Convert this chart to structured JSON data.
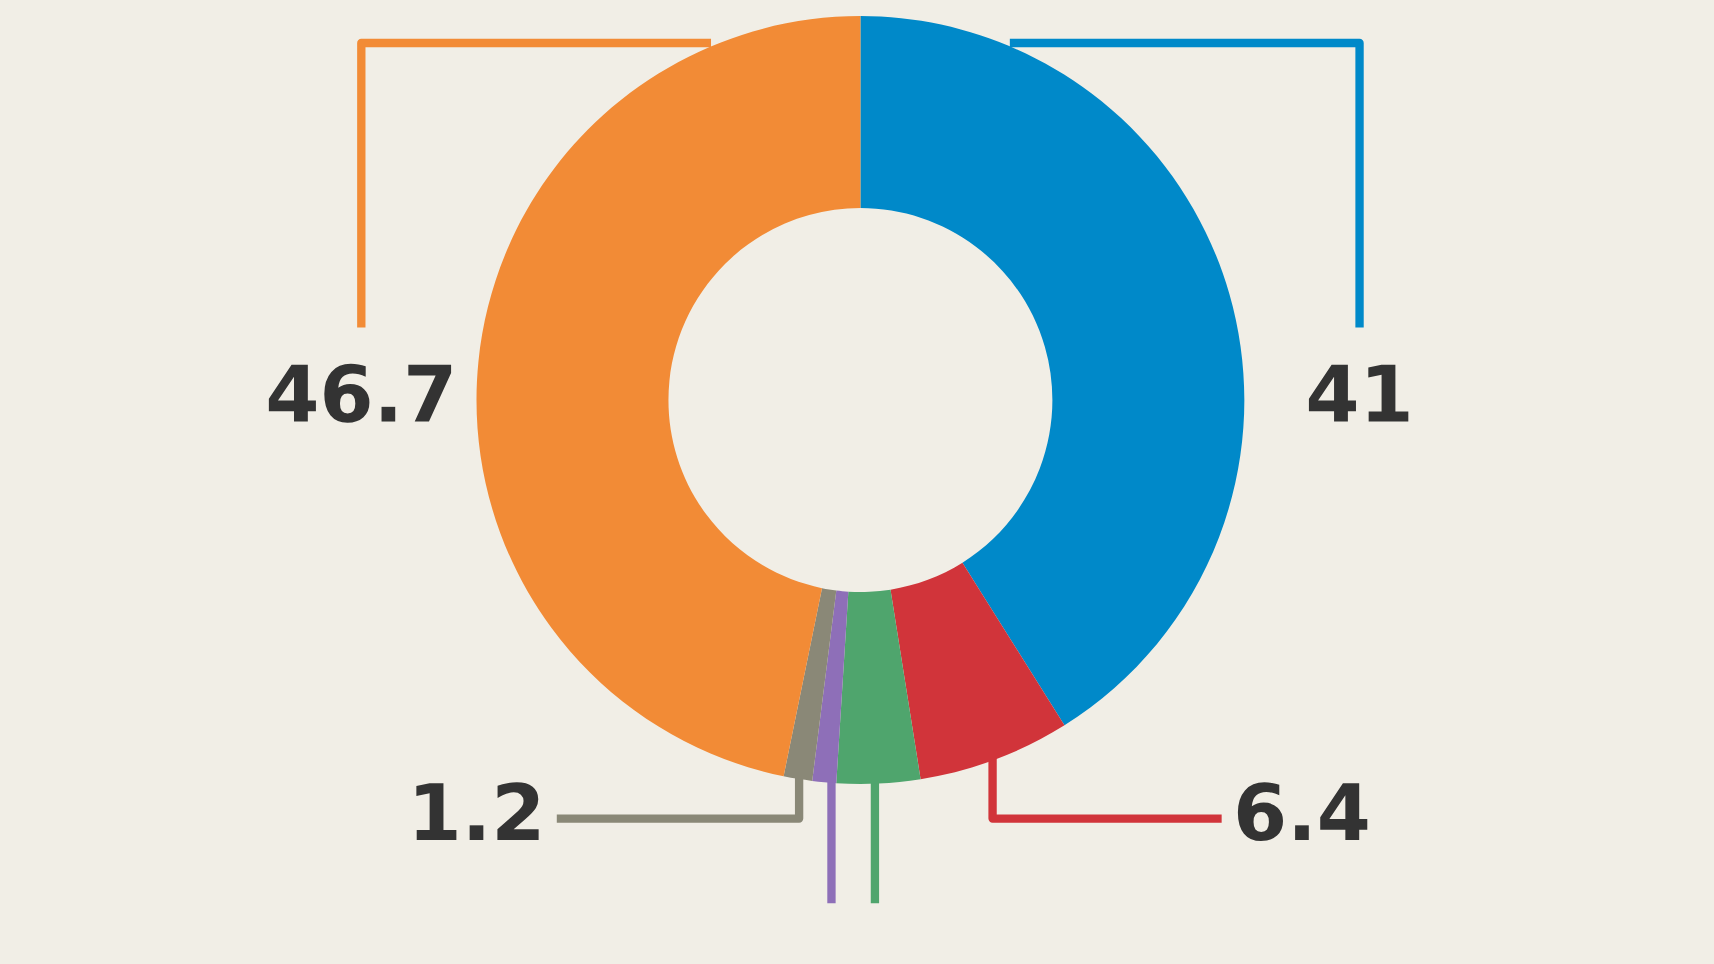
{
  "chart_data": {
    "type": "donut",
    "categories": [
      null,
      null,
      null,
      null,
      null,
      null
    ],
    "values": [
      41,
      6.4,
      3.5,
      1.0,
      1.2,
      46.7
    ],
    "colors": [
      "#0089c9",
      "#d1343a",
      "#4fa56d",
      "#8e6fb8",
      "#8a8877",
      "#f28b36"
    ],
    "value_labels": [
      "41",
      "6.4",
      null,
      null,
      "1.2",
      "46.7"
    ],
    "legend": false
  }
}
